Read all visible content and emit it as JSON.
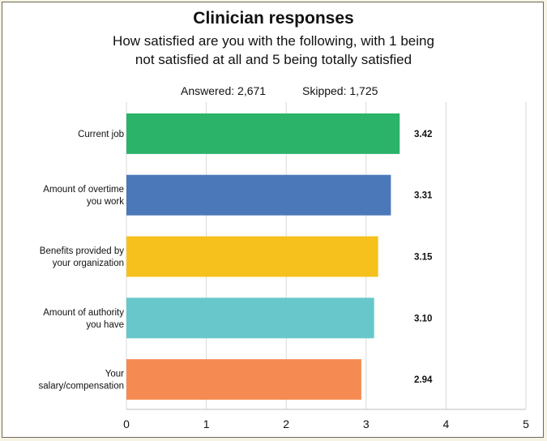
{
  "chart_data": {
    "type": "bar",
    "orientation": "horizontal",
    "title": "Clinician responses",
    "subtitle_lines": [
      "How satisfied are you with the following, with 1 being",
      "not satisfied at all and 5 being totally satisfied"
    ],
    "answered": "Answered: 2,671",
    "skipped": "Skipped: 1,725",
    "categories": [
      [
        "Current job"
      ],
      [
        "Amount of overtime",
        "you work"
      ],
      [
        "Benefits provided by",
        "your organization"
      ],
      [
        "Amount of authority",
        "you have"
      ],
      [
        "Your",
        "salary/compensation"
      ]
    ],
    "values": [
      3.42,
      3.31,
      3.15,
      3.1,
      2.94
    ],
    "value_labels": [
      "3.42",
      "3.31",
      "3.15",
      "3.10",
      "2.94"
    ],
    "bar_colors": [
      "#2bb36a",
      "#4a78b8",
      "#f6c11c",
      "#68c7ca",
      "#f58b53"
    ],
    "xlim": [
      0,
      5
    ],
    "xticks": [
      0,
      1,
      2,
      3,
      4,
      5
    ],
    "grid": "vertical",
    "legend": "none"
  }
}
